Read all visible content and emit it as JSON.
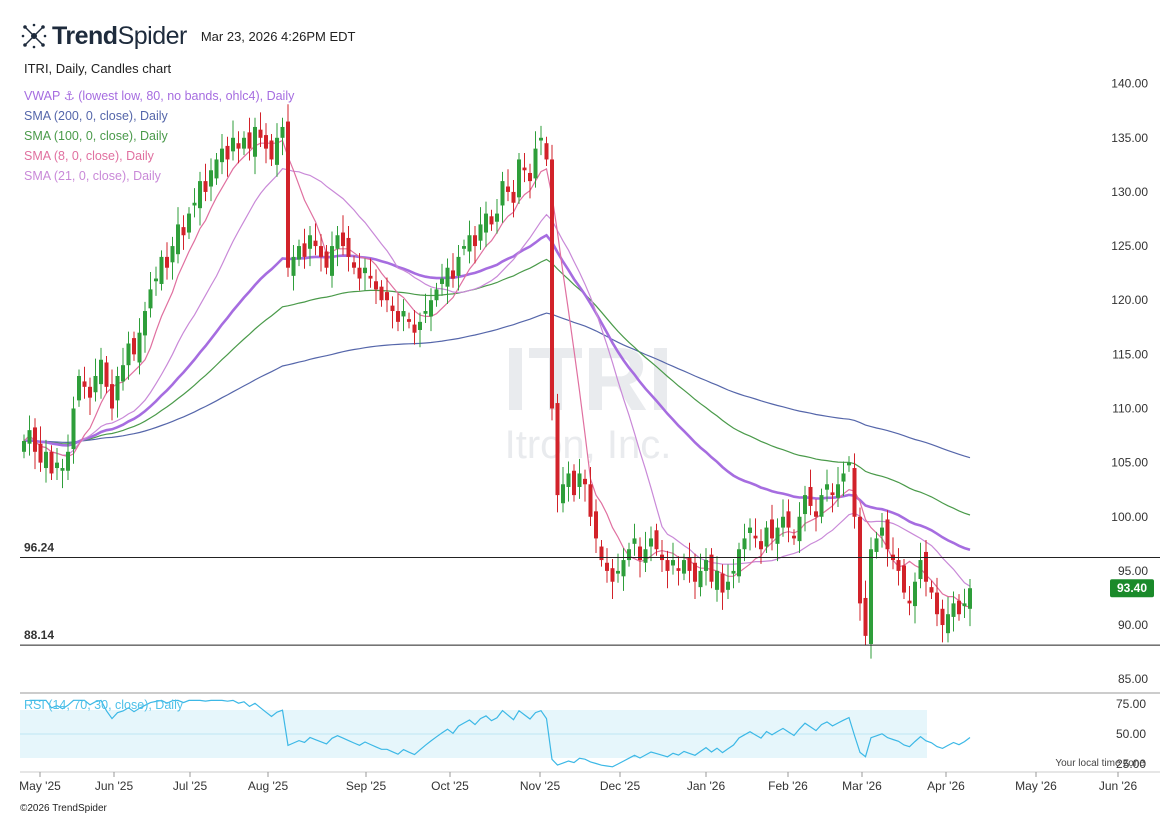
{
  "header": {
    "brand_bold": "Trend",
    "brand_light": "Spider",
    "timestamp": "Mar 23, 2026 4:26PM EDT"
  },
  "chart_title": "ITRI, Daily, Candles chart",
  "indicators": [
    {
      "label": "VWAP ⚓ (lowest low, 80, no bands, ohlc4), Daily",
      "color": "#a66de0"
    },
    {
      "label": "SMA (200, 0, close), Daily",
      "color": "#5566aa"
    },
    {
      "label": "SMA (100, 0, close), Daily",
      "color": "#4a9a4a"
    },
    {
      "label": "SMA (8, 0, close), Daily",
      "color": "#e070a0"
    },
    {
      "label": "SMA (21, 0, close), Daily",
      "color": "#c989d8"
    }
  ],
  "rsi_label": "RSI (14, 70, 30, close), Daily",
  "watermark": {
    "ticker": "ITRI",
    "company": "Itron, Inc."
  },
  "local_time_note": "Your local time zone",
  "copyright": "©2026 TrendSpider",
  "chart_data": {
    "type": "candlestick",
    "symbol": "ITRI",
    "interval": "Daily",
    "ylim": [
      84,
      142
    ],
    "y_ticks": [
      85,
      90,
      95,
      100,
      105,
      110,
      115,
      120,
      125,
      130,
      135,
      140
    ],
    "y_tick_labels": [
      "85.00",
      "90.00",
      "95.00",
      "100.00",
      "105.00",
      "110.00",
      "115.00",
      "120.00",
      "125.00",
      "130.00",
      "135.00",
      "140.00"
    ],
    "x_labels": [
      "May '25",
      "Jun '25",
      "Jul '25",
      "Aug '25",
      "Sep '25",
      "Oct '25",
      "Nov '25",
      "Dec '25",
      "Jan '26",
      "Feb '26",
      "Mar '26",
      "Apr '26",
      "May '26",
      "Jun '26"
    ],
    "last_price": 93.4,
    "last_price_label": "93.40",
    "horizontal_levels": [
      {
        "value": 96.24,
        "label": "96.24"
      },
      {
        "value": 88.14,
        "label": "88.14"
      }
    ],
    "closes": [
      107,
      108,
      106,
      105,
      106,
      104,
      105,
      104.5,
      106,
      110,
      113,
      112,
      111,
      113,
      114.5,
      112,
      110,
      113,
      114,
      116,
      115,
      117,
      119,
      121,
      122,
      124,
      123,
      125,
      127,
      126,
      128,
      129,
      131,
      130,
      132,
      133,
      134,
      133,
      135,
      134,
      135,
      134,
      136,
      135,
      134,
      133,
      135,
      136,
      123,
      124,
      125,
      124,
      126,
      125,
      124,
      123,
      125,
      126,
      125,
      124,
      123,
      122,
      123,
      122,
      121,
      120,
      120,
      119,
      118,
      119,
      118,
      117,
      118,
      119,
      120,
      121,
      122,
      123,
      122,
      124,
      125,
      126,
      125,
      127,
      128,
      127,
      128,
      131,
      130,
      129,
      133,
      132,
      131,
      134,
      135,
      133,
      110,
      102,
      103,
      104,
      102,
      104,
      103,
      100,
      98,
      96,
      95,
      94,
      95,
      96,
      97,
      98,
      96,
      97,
      98,
      97,
      96,
      95,
      96,
      95,
      96,
      95,
      94,
      95,
      96,
      94,
      95,
      93,
      94,
      95,
      97,
      98,
      99,
      98,
      97,
      99,
      98,
      99,
      100,
      99,
      98,
      100,
      102,
      101,
      100,
      102,
      103,
      102,
      103,
      104,
      105,
      100,
      92,
      89,
      97,
      98,
      99,
      97,
      96,
      95,
      93,
      92,
      94,
      96,
      94,
      93,
      91,
      90,
      91,
      92,
      91,
      92,
      93.4
    ],
    "rsi": {
      "ylim": [
        20,
        80
      ],
      "ticks": [
        25,
        50,
        75
      ],
      "tick_labels": [
        "25.00",
        "50.00",
        "75.00"
      ],
      "overbought": 70,
      "oversold": 30
    }
  }
}
